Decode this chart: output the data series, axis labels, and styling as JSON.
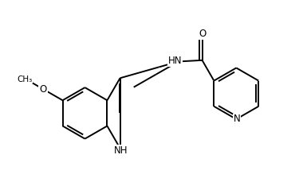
{
  "background_color": "#ffffff",
  "line_color": "#000000",
  "line_width": 1.4,
  "font_size": 8.5,
  "fig_width": 3.8,
  "fig_height": 2.24,
  "dpi": 100,
  "xlim": [
    0,
    10
  ],
  "ylim": [
    0,
    5.9
  ]
}
